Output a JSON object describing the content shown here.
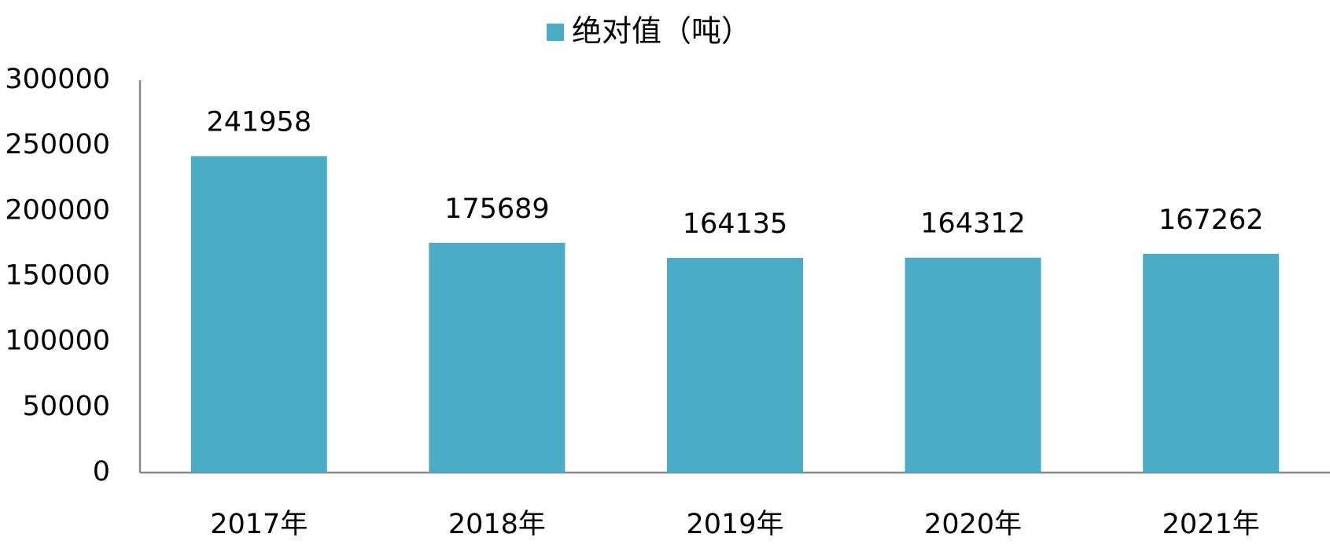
{
  "chart_data": {
    "type": "bar",
    "categories": [
      "2017年",
      "2018年",
      "2019年",
      "2020年",
      "2021年"
    ],
    "series": [
      {
        "name": "绝对值（吨）",
        "color": "#4bacc6",
        "values": [
          241958,
          175689,
          164135,
          164312,
          167262
        ]
      }
    ],
    "ylim": [
      0,
      300000
    ],
    "yticks": [
      0,
      50000,
      100000,
      150000,
      200000,
      250000,
      300000
    ],
    "grid": false,
    "legend": "top"
  }
}
